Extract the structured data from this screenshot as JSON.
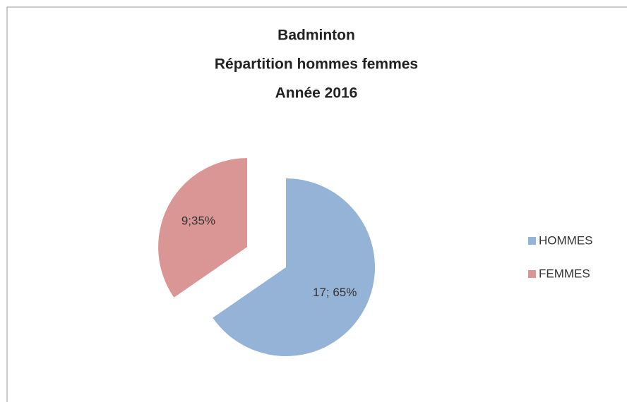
{
  "chart_data": {
    "type": "pie",
    "title": [
      "Badminton",
      "Répartition hommes femmes",
      "Année 2016"
    ],
    "categories": [
      "HOMMES",
      "FEMMES"
    ],
    "values": [
      17,
      9
    ],
    "value_labels": [
      "17; 65%",
      "9;35%"
    ],
    "colors": [
      "#95b3d7",
      "#d99694"
    ],
    "exploded": [
      false,
      true
    ],
    "legend": "right"
  }
}
